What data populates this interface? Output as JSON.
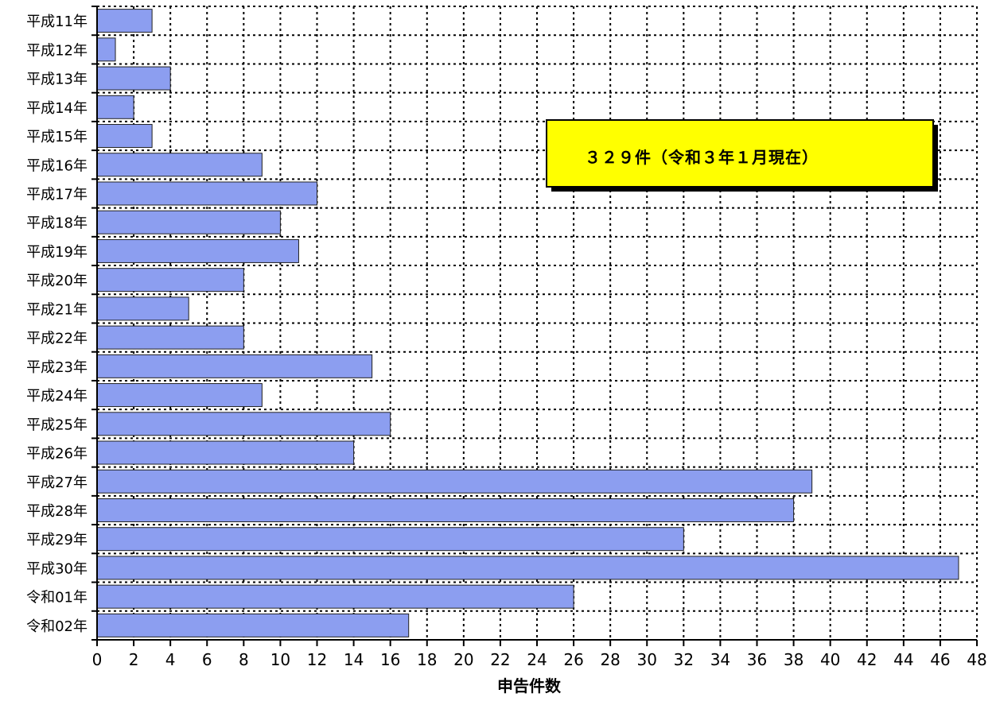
{
  "chart_data": {
    "type": "bar",
    "orientation": "horizontal",
    "categories": [
      "平成11年",
      "平成12年",
      "平成13年",
      "平成14年",
      "平成15年",
      "平成16年",
      "平成17年",
      "平成18年",
      "平成19年",
      "平成20年",
      "平成21年",
      "平成22年",
      "平成23年",
      "平成24年",
      "平成25年",
      "平成26年",
      "平成27年",
      "平成28年",
      "平成29年",
      "平成30年",
      "令和01年",
      "令和02年"
    ],
    "values": [
      3,
      1,
      4,
      2,
      3,
      9,
      12,
      10,
      11,
      8,
      5,
      8,
      15,
      9,
      16,
      14,
      39,
      38,
      32,
      47,
      26,
      17
    ],
    "xlabel": "申告件数",
    "ylabel": "",
    "xlim": [
      0,
      48
    ],
    "x_ticks": [
      0,
      2,
      4,
      6,
      8,
      10,
      12,
      14,
      16,
      18,
      20,
      22,
      24,
      26,
      28,
      30,
      32,
      34,
      36,
      38,
      40,
      42,
      44,
      46,
      48
    ],
    "grid": true,
    "annotation": "３２９件（令和３年１月現在）",
    "bar_color": "#8c9ef0",
    "annotation_bg": "#ffff00"
  }
}
